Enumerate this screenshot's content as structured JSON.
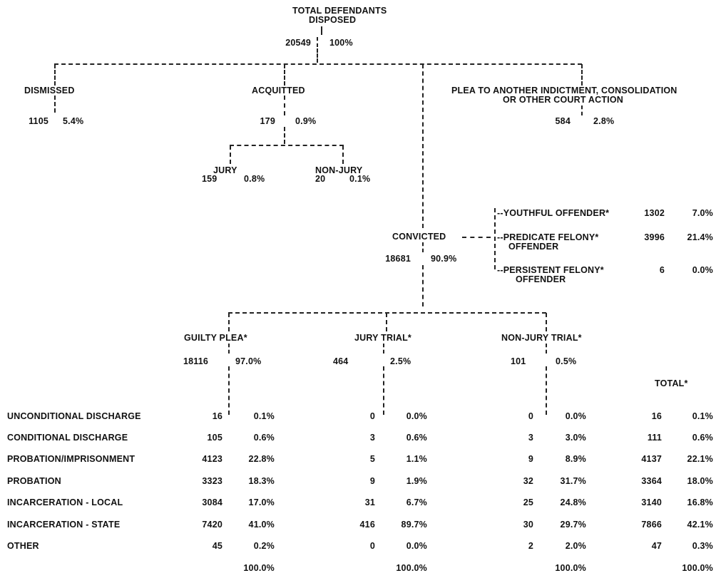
{
  "total": {
    "title_line1": "TOTAL DEFENDANTS",
    "title_line2": "DISPOSED",
    "count": "20549",
    "pct": "100%"
  },
  "dismissed": {
    "label": "DISMISSED",
    "count": "1105",
    "pct": "5.4%"
  },
  "acquitted": {
    "label": "ACQUITTED",
    "count": "179",
    "pct": "0.9%",
    "jury": {
      "label": "JURY",
      "count": "159",
      "pct": "0.8%"
    },
    "nonjury": {
      "label": "NON-JURY",
      "count": "20",
      "pct": "0.1%"
    }
  },
  "plea_other": {
    "line1": "PLEA TO ANOTHER INDICTMENT, CONSOLIDATION",
    "line2": "OR OTHER COURT ACTION",
    "count": "584",
    "pct": "2.8%"
  },
  "convicted": {
    "label": "CONVICTED",
    "count": "18681",
    "pct": "90.9%"
  },
  "offenders": [
    {
      "label": "--YOUTHFUL OFFENDER*",
      "label2": "",
      "count": "1302",
      "pct": "7.0%"
    },
    {
      "label": "--PREDICATE FELONY*",
      "label2": "OFFENDER",
      "count": "3996",
      "pct": "21.4%"
    },
    {
      "label": "--PERSISTENT FELONY*",
      "label2": "OFFENDER",
      "count": "6",
      "pct": "0.0%"
    }
  ],
  "columns": [
    {
      "label": "GUILTY PLEA*",
      "count": "18116",
      "pct": "97.0%"
    },
    {
      "label": "JURY TRIAL*",
      "count": "464",
      "pct": "2.5%"
    },
    {
      "label": "NON-JURY TRIAL*",
      "count": "101",
      "pct": "0.5%"
    }
  ],
  "total_header": "TOTAL*",
  "sentences": [
    {
      "label": "UNCONDITIONAL DISCHARGE",
      "v": [
        "16",
        "0.1%",
        "0",
        "0.0%",
        "0",
        "0.0%",
        "16",
        "0.1%"
      ]
    },
    {
      "label": "CONDITIONAL DISCHARGE",
      "v": [
        "105",
        "0.6%",
        "3",
        "0.6%",
        "3",
        "3.0%",
        "111",
        "0.6%"
      ]
    },
    {
      "label": "PROBATION/IMPRISONMENT",
      "v": [
        "4123",
        "22.8%",
        "5",
        "1.1%",
        "9",
        "8.9%",
        "4137",
        "22.1%"
      ]
    },
    {
      "label": "PROBATION",
      "v": [
        "3323",
        "18.3%",
        "9",
        "1.9%",
        "32",
        "31.7%",
        "3364",
        "18.0%"
      ]
    },
    {
      "label": "INCARCERATION - LOCAL",
      "v": [
        "3084",
        "17.0%",
        "31",
        "6.7%",
        "25",
        "24.8%",
        "3140",
        "16.8%"
      ]
    },
    {
      "label": "INCARCERATION - STATE",
      "v": [
        "7420",
        "41.0%",
        "416",
        "89.7%",
        "30",
        "29.7%",
        "7866",
        "42.1%"
      ]
    },
    {
      "label": "OTHER",
      "v": [
        "45",
        "0.2%",
        "0",
        "0.0%",
        "2",
        "2.0%",
        "47",
        "0.3%"
      ]
    }
  ],
  "footer": [
    "100.0%",
    "100.0%",
    "100.0%",
    "100.0%"
  ]
}
